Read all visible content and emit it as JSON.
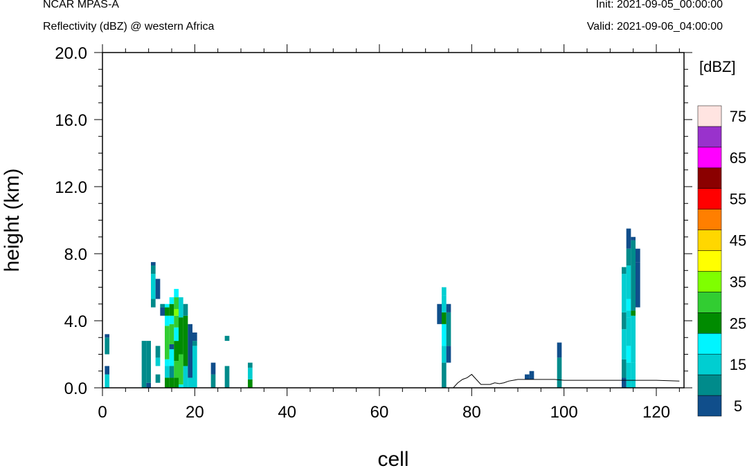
{
  "header": {
    "model": "NCAR MPAS-A",
    "field": "Reflectivity (dBZ) @ western Africa",
    "init": "Init: 2021-09-05_00:00:00",
    "valid": "Valid: 2021-09-06_04:00:00"
  },
  "chart_data": {
    "type": "heatmap",
    "title": "Reflectivity (dBZ) @ western Africa",
    "xlabel": "cell",
    "ylabel": "height (km)",
    "xlim": [
      0,
      126
    ],
    "ylim": [
      0,
      20
    ],
    "x_ticks": [
      0,
      20,
      40,
      60,
      80,
      100,
      120
    ],
    "x_tick_labels": [
      "0",
      "20",
      "40",
      "60",
      "80",
      "100",
      "120"
    ],
    "y_ticks": [
      0,
      4,
      8,
      12,
      16,
      20
    ],
    "y_tick_labels": [
      "0.0",
      "4.0",
      "8.0",
      "12.0",
      "16.0",
      "20.0"
    ],
    "colorbar": {
      "units": "[dBZ]",
      "levels": [
        5,
        10,
        15,
        20,
        25,
        30,
        35,
        40,
        45,
        50,
        55,
        60,
        65,
        70,
        75
      ],
      "labeled": [
        5,
        15,
        25,
        35,
        45,
        55,
        65,
        75
      ],
      "colors": [
        "#104E8B",
        "#008B8B",
        "#00CED1",
        "#00F5FF",
        "#008B00",
        "#32CD32",
        "#7FFF00",
        "#FFFF00",
        "#FFD700",
        "#FF7F00",
        "#FF0000",
        "#8B0000",
        "#FF00FF",
        "#9932CC",
        "#FFE4E1"
      ]
    },
    "terrain": [
      [
        76,
        0
      ],
      [
        77,
        0.3
      ],
      [
        78,
        0.5
      ],
      [
        79,
        0.6
      ],
      [
        80,
        0.8
      ],
      [
        81,
        0.5
      ],
      [
        82,
        0.2
      ],
      [
        83,
        0.2
      ],
      [
        84,
        0.2
      ],
      [
        85,
        0.3
      ],
      [
        86,
        0.25
      ],
      [
        87,
        0.3
      ],
      [
        88,
        0.4
      ],
      [
        89,
        0.45
      ],
      [
        90,
        0.5
      ],
      [
        92,
        0.5
      ],
      [
        94,
        0.5
      ],
      [
        96,
        0.5
      ],
      [
        98,
        0.5
      ],
      [
        100,
        0.45
      ],
      [
        105,
        0.45
      ],
      [
        110,
        0.45
      ],
      [
        115,
        0.45
      ],
      [
        120,
        0.45
      ],
      [
        125,
        0.4
      ]
    ],
    "columns": [
      {
        "x": 1,
        "cells": [
          [
            0,
            0.8,
            15
          ],
          [
            0.8,
            1.3,
            5
          ],
          [
            2.0,
            3.0,
            10
          ],
          [
            3.0,
            3.2,
            5
          ]
        ]
      },
      {
        "x": 9,
        "cells": [
          [
            0,
            2.8,
            10
          ]
        ]
      },
      {
        "x": 10,
        "cells": [
          [
            0,
            0.3,
            5
          ],
          [
            0.3,
            2.8,
            10
          ]
        ]
      },
      {
        "x": 11,
        "cells": [
          [
            4.8,
            5.3,
            10
          ],
          [
            5.3,
            6.8,
            15
          ],
          [
            6.8,
            7.3,
            10
          ],
          [
            7.3,
            7.5,
            5
          ]
        ]
      },
      {
        "x": 12,
        "cells": [
          [
            0.3,
            0.8,
            10
          ],
          [
            1.3,
            1.8,
            15
          ],
          [
            1.8,
            2.5,
            10
          ],
          [
            5.3,
            6.5,
            5
          ]
        ]
      },
      {
        "x": 13,
        "cells": [
          [
            4.3,
            4.8,
            5
          ],
          [
            4.8,
            5.0,
            10
          ]
        ]
      },
      {
        "x": 14,
        "cells": [
          [
            0,
            0.6,
            25
          ],
          [
            0.6,
            1.3,
            15
          ],
          [
            1.3,
            1.7,
            20
          ],
          [
            1.7,
            3.7,
            30
          ],
          [
            3.7,
            4.3,
            20
          ],
          [
            4.3,
            4.8,
            25
          ],
          [
            4.8,
            5.0,
            20
          ]
        ]
      },
      {
        "x": 15,
        "cells": [
          [
            0,
            0.6,
            25
          ],
          [
            0.6,
            1.3,
            10
          ],
          [
            1.3,
            2.3,
            20
          ],
          [
            2.3,
            2.6,
            5
          ],
          [
            2.6,
            3.8,
            30
          ],
          [
            3.8,
            4.3,
            20
          ],
          [
            4.3,
            5.0,
            25
          ],
          [
            5.0,
            5.4,
            20
          ]
        ]
      },
      {
        "x": 16,
        "cells": [
          [
            0,
            0.6,
            25
          ],
          [
            0.6,
            1.6,
            30
          ],
          [
            1.6,
            2.8,
            25
          ],
          [
            2.8,
            3.6,
            20
          ],
          [
            3.6,
            4.3,
            30
          ],
          [
            4.3,
            4.7,
            35
          ],
          [
            4.7,
            5.4,
            30
          ],
          [
            5.4,
            5.9,
            20
          ]
        ]
      },
      {
        "x": 17,
        "cells": [
          [
            0,
            0.2,
            20
          ],
          [
            0.2,
            2.0,
            30
          ],
          [
            2.0,
            4.2,
            25
          ],
          [
            4.2,
            5.4,
            15
          ]
        ]
      },
      {
        "x": 18,
        "cells": [
          [
            0,
            1.3,
            15
          ],
          [
            1.3,
            4.3,
            25
          ],
          [
            4.3,
            5.0,
            10
          ]
        ]
      },
      {
        "x": 19,
        "cells": [
          [
            0,
            0.6,
            15
          ],
          [
            0.6,
            3.8,
            5
          ]
        ]
      },
      {
        "x": 20,
        "cells": [
          [
            0,
            2.5,
            15
          ],
          [
            2.5,
            2.8,
            10
          ],
          [
            2.8,
            3.3,
            5
          ]
        ]
      },
      {
        "x": 24,
        "cells": [
          [
            0,
            0.8,
            10
          ],
          [
            0.8,
            1.5,
            5
          ]
        ]
      },
      {
        "x": 27,
        "cells": [
          [
            0,
            1.3,
            10
          ],
          [
            2.8,
            3.1,
            10
          ]
        ]
      },
      {
        "x": 32,
        "cells": [
          [
            0,
            0.5,
            25
          ],
          [
            0.5,
            1.2,
            15
          ],
          [
            1.2,
            1.5,
            10
          ]
        ]
      },
      {
        "x": 73,
        "cells": [
          [
            3.8,
            5.0,
            5
          ]
        ]
      },
      {
        "x": 74,
        "cells": [
          [
            0,
            1.5,
            10
          ],
          [
            1.5,
            2.5,
            15
          ],
          [
            2.5,
            3.8,
            20
          ],
          [
            3.8,
            4.5,
            25
          ],
          [
            4.5,
            5.5,
            15
          ],
          [
            5.5,
            6.0,
            15
          ]
        ]
      },
      {
        "x": 75,
        "cells": [
          [
            1.5,
            2.5,
            5
          ],
          [
            2.5,
            4.5,
            10
          ],
          [
            4.5,
            5.0,
            5
          ]
        ]
      },
      {
        "x": 92,
        "cells": [
          [
            0.5,
            0.8,
            5
          ]
        ]
      },
      {
        "x": 93,
        "cells": [
          [
            0.5,
            1.0,
            5
          ]
        ]
      },
      {
        "x": 99,
        "cells": [
          [
            0,
            1.8,
            10
          ],
          [
            1.8,
            2.7,
            5
          ]
        ]
      },
      {
        "x": 113,
        "cells": [
          [
            0,
            0.6,
            5
          ],
          [
            0.6,
            1.7,
            10
          ],
          [
            1.7,
            3.5,
            15
          ],
          [
            3.5,
            4.5,
            10
          ],
          [
            4.5,
            6.8,
            15
          ],
          [
            6.8,
            7.2,
            10
          ]
        ]
      },
      {
        "x": 114,
        "cells": [
          [
            0,
            1.5,
            15
          ],
          [
            1.5,
            2.5,
            20
          ],
          [
            2.5,
            4.2,
            15
          ],
          [
            4.2,
            4.6,
            15
          ],
          [
            4.6,
            5.3,
            20
          ],
          [
            5.3,
            7.3,
            15
          ],
          [
            7.3,
            8.3,
            10
          ],
          [
            8.3,
            9.5,
            5
          ]
        ]
      },
      {
        "x": 115,
        "cells": [
          [
            0,
            1.5,
            15
          ],
          [
            1.5,
            4.3,
            15
          ],
          [
            4.3,
            4.6,
            25
          ],
          [
            4.6,
            7.3,
            10
          ],
          [
            7.3,
            8.8,
            10
          ],
          [
            8.8,
            9.0,
            5
          ]
        ]
      },
      {
        "x": 116,
        "cells": [
          [
            4.8,
            7.5,
            5
          ],
          [
            7.5,
            8.3,
            5
          ]
        ]
      }
    ]
  }
}
